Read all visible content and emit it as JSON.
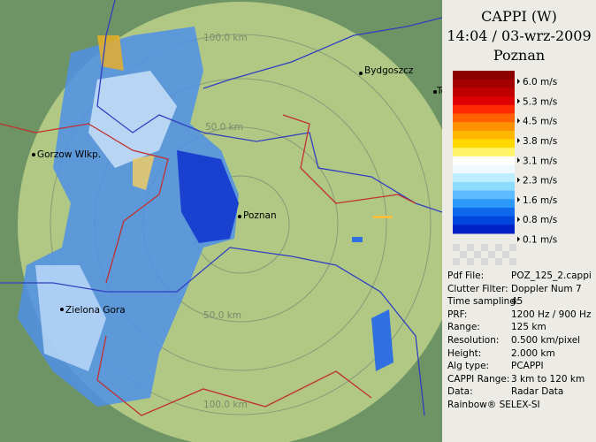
{
  "map": {
    "cities": [
      {
        "label": "Bydgoszcz"
      },
      {
        "label": "Gorzow Wlkp."
      },
      {
        "label": "Poznan"
      },
      {
        "label": "Zielona Gora"
      },
      {
        "label": "To"
      }
    ],
    "rings": [
      "100.0 km",
      "50.0 km",
      "50.0 km",
      "100.0 km"
    ]
  },
  "panel": {
    "title": "CAPPI (W)",
    "datetime": "14:04 / 03-wrz-2009",
    "site": "Poznan",
    "scale_colors": [
      "#8c0000",
      "#a40000",
      "#c00000",
      "#dc0000",
      "#ff2a00",
      "#ff6000",
      "#ff9000",
      "#ffb800",
      "#ffd800",
      "#fff36a",
      "#ffffff",
      "#eefaff",
      "#bdeeff",
      "#8cdcff",
      "#5cbcff",
      "#2c98f8",
      "#1068ec",
      "#0046dc",
      "#0020c8"
    ],
    "scale_labels": [
      "6.0 m/s",
      "5.3 m/s",
      "4.5 m/s",
      "3.8 m/s",
      "3.1 m/s",
      "2.3 m/s",
      "1.6 m/s",
      "0.8 m/s",
      "0.1 m/s"
    ],
    "info": [
      [
        "Pdf File:",
        "POZ_125_2.cappi"
      ],
      [
        "Clutter Filter:",
        "Doppler Num 7"
      ],
      [
        "Time sampling:",
        "45"
      ],
      [
        "PRF:",
        "1200 Hz / 900 Hz"
      ],
      [
        "Range:",
        "125 km"
      ],
      [
        "Resolution:",
        "0.500 km/pixel"
      ],
      [
        "Height:",
        "2.000 km"
      ],
      [
        "Alg type:",
        "PCAPPI"
      ],
      [
        "CAPPI Range:",
        "3 km to 120 km"
      ],
      [
        "Data:",
        "Radar Data"
      ]
    ],
    "footer": "Rainbow® SELEX-SI"
  }
}
